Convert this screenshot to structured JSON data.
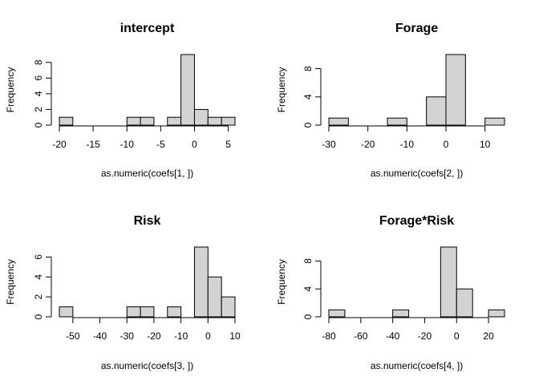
{
  "chart_data": [
    {
      "type": "bar",
      "title": "intercept",
      "xlabel": "as.numeric(coefs[1, ])",
      "ylabel": "Frequency",
      "bin_edges": [
        -20,
        -18,
        -16,
        -14,
        -12,
        -10,
        -8,
        -6,
        -4,
        -2,
        0,
        2,
        4,
        6
      ],
      "values": [
        1,
        0,
        0,
        0,
        0,
        1,
        1,
        0,
        1,
        9,
        2,
        1,
        1
      ],
      "xticks": [
        -20,
        -15,
        -10,
        -5,
        0,
        5
      ],
      "yticks": [
        0,
        2,
        4,
        6,
        8
      ],
      "xlim": [
        -20,
        6
      ],
      "ylim": [
        0,
        9
      ]
    },
    {
      "type": "bar",
      "title": "Forage",
      "xlabel": "as.numeric(coefs[2, ])",
      "ylabel": "Frequency",
      "bin_edges": [
        -30,
        -25,
        -20,
        -15,
        -10,
        -5,
        0,
        5,
        10,
        15
      ],
      "values": [
        1,
        0,
        0,
        1,
        0,
        4,
        10,
        0,
        1
      ],
      "xticks": [
        -30,
        -20,
        -10,
        0,
        10
      ],
      "yticks": [
        0,
        4,
        8
      ],
      "xlim": [
        -30,
        15
      ],
      "ylim": [
        0,
        10
      ]
    },
    {
      "type": "bar",
      "title": "Risk",
      "xlabel": "as.numeric(coefs[3, ])",
      "ylabel": "Frequency",
      "bin_edges": [
        -55,
        -50,
        -45,
        -40,
        -35,
        -30,
        -25,
        -20,
        -15,
        -10,
        -5,
        0,
        5,
        10
      ],
      "values": [
        1,
        0,
        0,
        0,
        0,
        1,
        1,
        0,
        1,
        0,
        7,
        4,
        2
      ],
      "xticks": [
        -50,
        -40,
        -30,
        -20,
        -10,
        0,
        10
      ],
      "yticks": [
        0,
        2,
        4,
        6
      ],
      "xlim": [
        -55,
        10
      ],
      "ylim": [
        0,
        7
      ]
    },
    {
      "type": "bar",
      "title": "Forage*Risk",
      "xlabel": "as.numeric(coefs[4, ])",
      "ylabel": "Frequency",
      "bin_edges": [
        -80,
        -70,
        -60,
        -50,
        -40,
        -30,
        -20,
        -10,
        0,
        10,
        20,
        30
      ],
      "values": [
        1,
        0,
        0,
        0,
        1,
        0,
        0,
        10,
        4,
        0,
        1
      ],
      "xticks": [
        -80,
        -60,
        -40,
        -20,
        0,
        20
      ],
      "yticks": [
        0,
        4,
        8
      ],
      "xlim": [
        -80,
        30
      ],
      "ylim": [
        0,
        10
      ]
    }
  ]
}
